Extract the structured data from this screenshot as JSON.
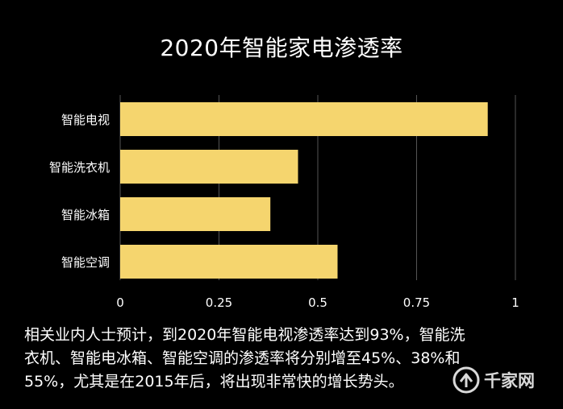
{
  "chart_data": {
    "type": "bar",
    "orientation": "horizontal",
    "title": "2020年智能家电渗透率",
    "categories": [
      "智能电视",
      "智能洗衣机",
      "智能冰箱",
      "智能空调"
    ],
    "values": [
      0.93,
      0.45,
      0.38,
      0.55
    ],
    "xlim": [
      0,
      1
    ],
    "xticks": [
      "0",
      "0.25",
      "0.5",
      "0.75",
      "1"
    ],
    "grid": true,
    "bar_color": "#F5D56E",
    "background": "#000000"
  },
  "caption": {
    "lines": [
      "相关业内人士预计，到2020年智能电视渗透率达到93%，智能洗",
      "衣机、智能电冰箱、智能空调的渗透率将分别增至45%、38%和",
      "55%，尤其是在2015年后，将出现非常快的增长势头。"
    ]
  },
  "watermark": {
    "text": "千家网",
    "icon": "logo-icon"
  }
}
